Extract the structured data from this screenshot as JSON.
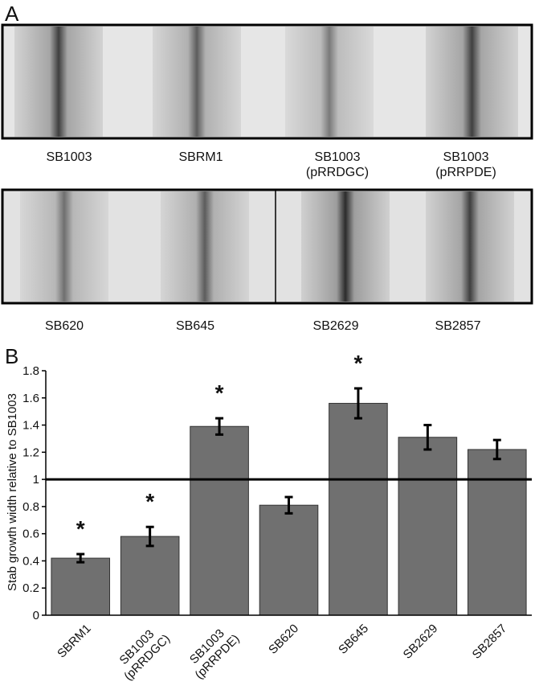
{
  "panel_a": {
    "label": "A",
    "top_strains": [
      "SB1003",
      "SBRM1",
      "SB1003\n(pRRDGC)",
      "SB1003\n(pRRPDE)"
    ],
    "bottom_strains": [
      "SB620",
      "SB645",
      "SB2629",
      "SB2857"
    ]
  },
  "chart_data": {
    "type": "bar",
    "panel_label": "B",
    "ylabel": "Stab growth width relative to SB1003",
    "categories": [
      "SBRM1",
      "SB1003\n(pRRDGC)",
      "SB1003\n(pRRPDE)",
      "SB620",
      "SB645",
      "SB2629",
      "SB2857"
    ],
    "values": [
      0.42,
      0.58,
      1.39,
      0.81,
      1.56,
      1.31,
      1.22
    ],
    "errors": [
      0.03,
      0.07,
      0.06,
      0.06,
      0.11,
      0.09,
      0.07
    ],
    "significance": [
      "*",
      "*",
      "*",
      null,
      "*",
      null,
      null
    ],
    "reference_line": 1,
    "color": "#707070",
    "ylim": [
      0,
      1.8
    ],
    "yticks": [
      0,
      0.2,
      0.4,
      0.6,
      0.8,
      1,
      1.2,
      1.4,
      1.6,
      1.8
    ]
  }
}
